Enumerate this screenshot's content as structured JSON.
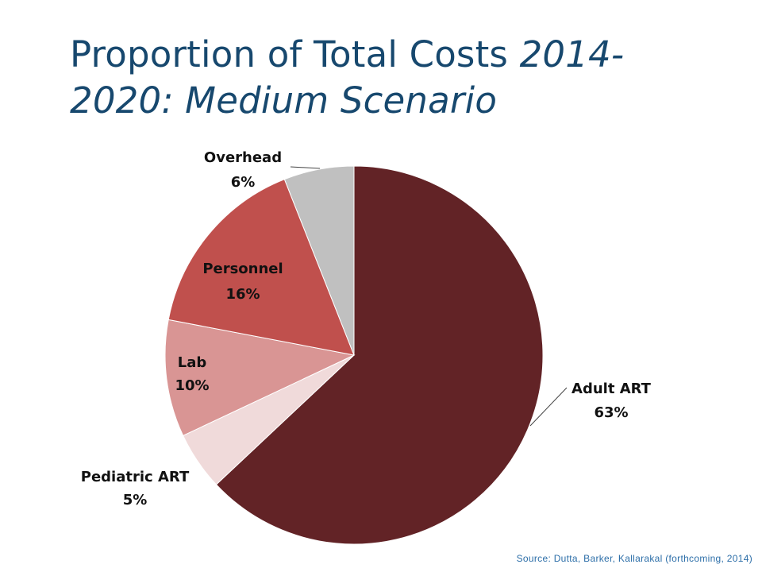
{
  "title": {
    "line1_plain": "Proportion of Total Costs ",
    "line1_italic": "2014-",
    "line2_italic": "2020: Medium Scenario"
  },
  "chart_data": {
    "type": "pie",
    "title": "Proportion of Total Costs 2014-2020: Medium Scenario",
    "slices": [
      {
        "name": "Adult ART",
        "value": 63,
        "label": "63%",
        "color": "#622326"
      },
      {
        "name": "Pediatric ART",
        "value": 5,
        "label": "5%",
        "color": "#f0dada"
      },
      {
        "name": "Lab",
        "value": 10,
        "label": "10%",
        "color": "#d99594"
      },
      {
        "name": "Personnel",
        "value": 16,
        "label": "16%",
        "color": "#c0504d"
      },
      {
        "name": "Overhead",
        "value": 6,
        "label": "6%",
        "color": "#c0c0c0"
      }
    ]
  },
  "source": "Source: Dutta, Barker, Kallarakal (forthcoming, 2014)"
}
